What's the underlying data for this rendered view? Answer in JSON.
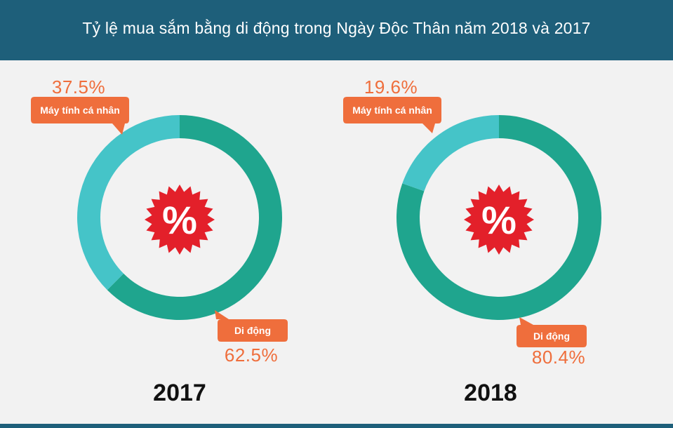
{
  "header": {
    "title": "Tỷ lệ mua sắm bằng di động trong Ngày Độc Thân năm 2018 và 2017"
  },
  "colors": {
    "header_bg": "#1e5f7a",
    "mobile": "#1fa58e",
    "pc": "#45c4c8",
    "callout": "#ef6e3c",
    "badge": "#e3202a",
    "background": "#f2f2f2"
  },
  "badge_icon": "percent-starburst-icon",
  "chart_data": [
    {
      "type": "pie",
      "title": "2017",
      "categories": [
        "Di động",
        "Máy tính cá nhân"
      ],
      "values": [
        62.5,
        37.5
      ],
      "labels": [
        "62.5%",
        "37.5%"
      ]
    },
    {
      "type": "pie",
      "title": "2018",
      "categories": [
        "Di động",
        "Máy tính cá nhân"
      ],
      "values": [
        80.4,
        19.6
      ],
      "labels": [
        "80.4%",
        "19.6%"
      ]
    }
  ],
  "badge_symbol": "%"
}
